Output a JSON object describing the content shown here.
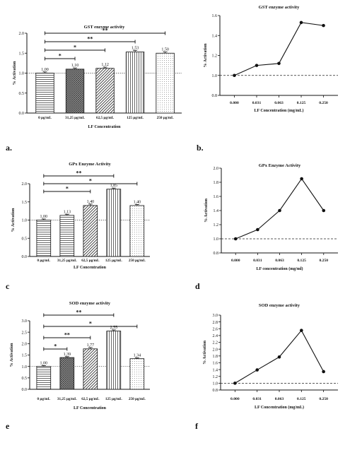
{
  "panel_labels": [
    "a.",
    "b.",
    "c",
    "d",
    "e",
    "f"
  ],
  "chart_data": [
    {
      "type": "bar",
      "title": "GST enzyme activity",
      "xlabel": "LF Concentration",
      "ylabel": "% Activation",
      "categories": [
        "0 µg/mL",
        "31,25 µg/mL",
        "62,5 µg/mL",
        "125 µg/mL",
        "250 µg/mL"
      ],
      "values": [
        1.0,
        1.1,
        1.12,
        1.53,
        1.5
      ],
      "value_labels": [
        "1,00",
        "1,10",
        "1,12",
        "1,53",
        "1,50"
      ],
      "errors": [
        0.03,
        0.03,
        0.03,
        0.04,
        0.03
      ],
      "ylim": [
        0,
        2.0
      ],
      "yticks": [
        "0.0",
        "0.5",
        "1.0",
        "1.5",
        "2.0"
      ],
      "ytick_values": [
        0,
        0.5,
        1.0,
        1.5,
        2.0
      ],
      "reference_line": 1.0,
      "patterns": [
        "hlines",
        "crosshatch",
        "diag",
        "vlines",
        "dots"
      ],
      "significance": [
        {
          "from": 0,
          "to": 4,
          "label": "**"
        },
        {
          "from": 0,
          "to": 3,
          "label": "**"
        },
        {
          "from": 0,
          "to": 2,
          "label": "*"
        },
        {
          "from": 0,
          "to": 1,
          "label": "*"
        }
      ]
    },
    {
      "type": "line",
      "title": "GST enzyme activity",
      "xlabel": "LF Concentration (mg/mL)",
      "ylabel": "% Activation",
      "x": [
        "0.000",
        "0.031",
        "0.063",
        "0.125",
        "0.250"
      ],
      "values": [
        1.0,
        1.1,
        1.12,
        1.53,
        1.5
      ],
      "ylim": [
        0.8,
        1.6
      ],
      "yticks": [
        "0.8",
        "1.0",
        "1.2",
        "1.4",
        "1.6"
      ],
      "ytick_values": [
        0.8,
        1.0,
        1.2,
        1.4,
        1.6
      ],
      "reference_line": 1.0
    },
    {
      "type": "bar",
      "title": "GPx Enzyme Activity",
      "xlabel": "LF Concentration",
      "ylabel": "% Activation",
      "categories": [
        "0 µg/mL",
        "31,25 µg/mL",
        "62,5 µg/mL",
        "125 µg/mL",
        "250 µg/mL"
      ],
      "values": [
        1.0,
        1.13,
        1.4,
        1.85,
        1.4
      ],
      "value_labels": [
        "1,00",
        "1,13",
        "1,40",
        "1,85",
        "1,40"
      ],
      "errors": [
        0.03,
        0.03,
        0.04,
        0.03,
        0.03
      ],
      "ylim": [
        0,
        2.0
      ],
      "yticks": [
        "0.0",
        "0.5",
        "1.0",
        "1.5",
        "2.0"
      ],
      "ytick_values": [
        0,
        0.5,
        1.0,
        1.5,
        2.0
      ],
      "reference_line": 1.0,
      "patterns": [
        "hlines",
        "hlines",
        "diag",
        "vlines",
        "dots"
      ],
      "significance": [
        {
          "from": 0,
          "to": 3,
          "label": "**"
        },
        {
          "from": 0,
          "to": 4,
          "label": "*"
        },
        {
          "from": 0,
          "to": 2,
          "label": "*"
        }
      ]
    },
    {
      "type": "line",
      "title": "GPx Enzyme Activity",
      "xlabel": "LF  concentration (mg/ml)",
      "ylabel": "% Activation",
      "x": [
        "0.000",
        "0.031",
        "0.063",
        "0.125",
        "0.250"
      ],
      "values": [
        1.0,
        1.13,
        1.4,
        1.85,
        1.4
      ],
      "ylim": [
        0.8,
        2.0
      ],
      "yticks": [
        "0.8",
        "1.0",
        "1.2",
        "1.4",
        "1.6",
        "1.8",
        "2.0"
      ],
      "ytick_values": [
        0.8,
        1.0,
        1.2,
        1.4,
        1.6,
        1.8,
        2.0
      ],
      "reference_line": 1.0
    },
    {
      "type": "bar",
      "title": "SOD enzyme activity",
      "xlabel": "LF Concentration",
      "ylabel": "% Activation",
      "categories": [
        "0 µg/mL",
        "31,25 µg/mL",
        "62,5 µg/mL",
        "125 µg/mL",
        "250 µg/mL"
      ],
      "values": [
        1.0,
        1.39,
        1.77,
        2.55,
        1.34
      ],
      "value_labels": [
        "1,00",
        "1,39",
        "1,77",
        "2,55",
        "1,34"
      ],
      "errors": [
        0.04,
        0.04,
        0.06,
        0.05,
        0.04
      ],
      "ylim": [
        0,
        3.0
      ],
      "yticks": [
        "0.0",
        "0.5",
        "1.0",
        "1.5",
        "2.0",
        "2.5",
        "3.0"
      ],
      "ytick_values": [
        0,
        0.5,
        1.0,
        1.5,
        2.0,
        2.5,
        3.0
      ],
      "reference_line": 1.0,
      "patterns": [
        "hlines",
        "crosshatch",
        "diag",
        "vlines",
        "dots"
      ],
      "significance": [
        {
          "from": 0,
          "to": 3,
          "label": "**"
        },
        {
          "from": 0,
          "to": 4,
          "label": "*"
        },
        {
          "from": 0,
          "to": 2,
          "label": "**"
        },
        {
          "from": 0,
          "to": 1,
          "label": "*"
        }
      ]
    },
    {
      "type": "line",
      "title": "SOD enzyme activity",
      "xlabel": "LF Concentration (mg/mL)",
      "ylabel": "% Activation",
      "x": [
        "0.000",
        "0.031",
        "0.063",
        "0.125",
        "0.250"
      ],
      "values": [
        1.0,
        1.39,
        1.77,
        2.55,
        1.34
      ],
      "ylim": [
        0.8,
        3.0
      ],
      "yticks": [
        "0.8",
        "1.0",
        "1.2",
        "1.4",
        "1.6",
        "1.8",
        "2.0",
        "2.2",
        "2.4",
        "2.6",
        "2.8",
        "3.0"
      ],
      "ytick_values": [
        0.8,
        1.0,
        1.2,
        1.4,
        1.6,
        1.8,
        2.0,
        2.2,
        2.4,
        2.6,
        2.8,
        3.0
      ],
      "reference_line": 1.0
    }
  ]
}
